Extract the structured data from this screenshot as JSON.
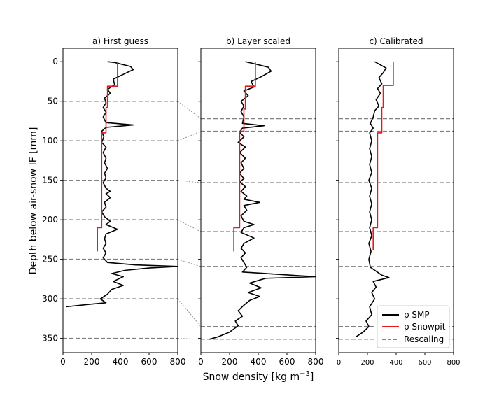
{
  "figure": {
    "ylabel": "Depth below air-snow IF [mm]",
    "xlabel": "Snow density [kg m$^{-3}$]",
    "xlabel_text": "Snow density [kg m",
    "xlabel_sup": "−3",
    "xlabel_close": "]"
  },
  "legend": {
    "items": [
      {
        "label": "ρ SMP",
        "color": "#000000",
        "style": "solid"
      },
      {
        "label": "ρ Snowpit",
        "color": "#e41a1c",
        "style": "solid"
      },
      {
        "label": "Rescaling",
        "color": "#808080",
        "style": "dashed"
      }
    ]
  },
  "colors": {
    "smp": "#000000",
    "snowpit": "#e41a1c",
    "rescaling": "#808080"
  },
  "chart_data": [
    {
      "type": "line",
      "title": "a) First guess",
      "xlim": [
        0,
        800
      ],
      "ylim": [
        368,
        -17
      ],
      "y_inverted": true,
      "xticks": [
        0,
        200,
        400,
        600,
        800
      ],
      "yticks": [
        0,
        50,
        100,
        150,
        200,
        250,
        300,
        350
      ],
      "rescaling_lines": [
        50,
        100,
        150,
        200,
        250,
        300,
        350
      ],
      "series": [
        {
          "name": "ρ SMP",
          "points": [
            [
              310,
              0
            ],
            [
              360,
              1
            ],
            [
              470,
              6
            ],
            [
              490,
              10
            ],
            [
              420,
              16
            ],
            [
              350,
              22
            ],
            [
              360,
              29
            ],
            [
              310,
              35
            ],
            [
              330,
              40
            ],
            [
              290,
              46
            ],
            [
              300,
              52
            ],
            [
              280,
              58
            ],
            [
              300,
              64
            ],
            [
              280,
              70
            ],
            [
              300,
              77
            ],
            [
              490,
              80
            ],
            [
              300,
              83
            ],
            [
              270,
              88
            ],
            [
              285,
              95
            ],
            [
              270,
              102
            ],
            [
              300,
              108
            ],
            [
              280,
              115
            ],
            [
              300,
              122
            ],
            [
              290,
              128
            ],
            [
              310,
              135
            ],
            [
              290,
              141
            ],
            [
              300,
              147
            ],
            [
              280,
              153
            ],
            [
              300,
              160
            ],
            [
              330,
              164
            ],
            [
              300,
              167
            ],
            [
              330,
              172
            ],
            [
              290,
              178
            ],
            [
              300,
              184
            ],
            [
              270,
              190
            ],
            [
              290,
              196
            ],
            [
              330,
              202
            ],
            [
              300,
              206
            ],
            [
              380,
              212
            ],
            [
              300,
              218
            ],
            [
              290,
              224
            ],
            [
              300,
              230
            ],
            [
              280,
              236
            ],
            [
              300,
              242
            ],
            [
              280,
              248
            ],
            [
              310,
              254
            ],
            [
              500,
              257
            ],
            [
              800,
              259
            ],
            [
              600,
              261
            ],
            [
              430,
              264
            ],
            [
              340,
              268
            ],
            [
              420,
              272
            ],
            [
              350,
              278
            ],
            [
              420,
              283
            ],
            [
              340,
              288
            ],
            [
              310,
              294
            ],
            [
              260,
              300
            ],
            [
              300,
              305
            ],
            [
              180,
              307
            ],
            [
              20,
              310
            ]
          ]
        },
        {
          "name": "ρ Snowpit",
          "points": [
            [
              380,
              0
            ],
            [
              380,
              31
            ],
            [
              310,
              31
            ],
            [
              310,
              58
            ],
            [
              300,
              58
            ],
            [
              300,
              90
            ],
            [
              270,
              90
            ],
            [
              270,
              210
            ],
            [
              240,
              210
            ],
            [
              240,
              240
            ]
          ]
        }
      ]
    },
    {
      "type": "line",
      "title": "b) Layer scaled",
      "xlim": [
        0,
        800
      ],
      "ylim": [
        368,
        -17
      ],
      "y_inverted": true,
      "xticks": [
        0,
        200,
        400,
        600,
        800
      ],
      "yticks": [
        0,
        50,
        100,
        150,
        200,
        250,
        300,
        350
      ],
      "rescaling_lines": [
        72,
        88,
        153,
        215,
        259,
        335,
        351
      ],
      "series": [
        {
          "name": "ρ SMP",
          "points": [
            [
              310,
              0
            ],
            [
              360,
              2
            ],
            [
              470,
              7
            ],
            [
              490,
              12
            ],
            [
              420,
              19
            ],
            [
              350,
              25
            ],
            [
              370,
              32
            ],
            [
              300,
              37
            ],
            [
              330,
              43
            ],
            [
              280,
              50
            ],
            [
              300,
              56
            ],
            [
              280,
              63
            ],
            [
              300,
              70
            ],
            [
              290,
              78
            ],
            [
              440,
              81
            ],
            [
              290,
              84
            ],
            [
              270,
              89
            ],
            [
              300,
              95
            ],
            [
              260,
              102
            ],
            [
              310,
              108
            ],
            [
              270,
              115
            ],
            [
              310,
              122
            ],
            [
              280,
              128
            ],
            [
              300,
              135
            ],
            [
              270,
              141
            ],
            [
              300,
              148
            ],
            [
              270,
              152
            ],
            [
              310,
              158
            ],
            [
              280,
              164
            ],
            [
              320,
              170
            ],
            [
              300,
              174
            ],
            [
              410,
              178
            ],
            [
              300,
              182
            ],
            [
              320,
              188
            ],
            [
              280,
              195
            ],
            [
              300,
              202
            ],
            [
              370,
              206
            ],
            [
              300,
              210
            ],
            [
              280,
              216
            ],
            [
              370,
              223
            ],
            [
              300,
              230
            ],
            [
              280,
              236
            ],
            [
              310,
              242
            ],
            [
              280,
              248
            ],
            [
              300,
              254
            ],
            [
              320,
              260
            ],
            [
              290,
              266
            ],
            [
              800,
              272
            ],
            [
              450,
              274
            ],
            [
              340,
              280
            ],
            [
              420,
              286
            ],
            [
              330,
              292
            ],
            [
              410,
              297
            ],
            [
              340,
              302
            ],
            [
              300,
              308
            ],
            [
              260,
              315
            ],
            [
              290,
              322
            ],
            [
              240,
              328
            ],
            [
              260,
              334
            ],
            [
              200,
              342
            ],
            [
              120,
              348
            ],
            [
              80,
              350
            ],
            [
              60,
              351
            ]
          ]
        },
        {
          "name": "ρ Snowpit",
          "points": [
            [
              380,
              0
            ],
            [
              380,
              31
            ],
            [
              310,
              31
            ],
            [
              310,
              60
            ],
            [
              300,
              60
            ],
            [
              300,
              88
            ],
            [
              270,
              88
            ],
            [
              270,
              210
            ],
            [
              230,
              210
            ],
            [
              230,
              240
            ]
          ]
        }
      ]
    },
    {
      "type": "line",
      "title": "c) Calibrated",
      "xlim": [
        0,
        800
      ],
      "ylim": [
        368,
        -17
      ],
      "y_inverted": true,
      "xticks": [
        0,
        200,
        400,
        600,
        800
      ],
      "yticks": [
        0,
        50,
        100,
        150,
        200,
        250,
        300,
        350
      ],
      "rescaling_lines": [
        72,
        88,
        153,
        215,
        259,
        335,
        351
      ],
      "series": [
        {
          "name": "ρ SMP",
          "points": [
            [
              250,
              0
            ],
            [
              290,
              4
            ],
            [
              330,
              8
            ],
            [
              310,
              14
            ],
            [
              280,
              20
            ],
            [
              300,
              28
            ],
            [
              270,
              34
            ],
            [
              290,
              40
            ],
            [
              260,
              48
            ],
            [
              280,
              56
            ],
            [
              250,
              62
            ],
            [
              240,
              70
            ],
            [
              220,
              78
            ],
            [
              240,
              84
            ],
            [
              215,
              90
            ],
            [
              230,
              100
            ],
            [
              215,
              110
            ],
            [
              230,
              120
            ],
            [
              215,
              130
            ],
            [
              230,
              140
            ],
            [
              210,
              150
            ],
            [
              230,
              160
            ],
            [
              215,
              170
            ],
            [
              230,
              180
            ],
            [
              215,
              190
            ],
            [
              230,
              200
            ],
            [
              215,
              210
            ],
            [
              230,
              220
            ],
            [
              210,
              230
            ],
            [
              225,
              240
            ],
            [
              210,
              250
            ],
            [
              220,
              260
            ],
            [
              300,
              270
            ],
            [
              350,
              273
            ],
            [
              240,
              278
            ],
            [
              260,
              285
            ],
            [
              230,
              292
            ],
            [
              250,
              300
            ],
            [
              215,
              310
            ],
            [
              230,
              320
            ],
            [
              190,
              328
            ],
            [
              210,
              335
            ],
            [
              170,
              342
            ],
            [
              120,
              348
            ]
          ]
        },
        {
          "name": "ρ Snowpit",
          "points": [
            [
              380,
              0
            ],
            [
              380,
              30
            ],
            [
              310,
              30
            ],
            [
              310,
              58
            ],
            [
              300,
              58
            ],
            [
              300,
              90
            ],
            [
              270,
              90
            ],
            [
              270,
              210
            ],
            [
              240,
              210
            ],
            [
              240,
              238
            ]
          ]
        }
      ]
    }
  ]
}
